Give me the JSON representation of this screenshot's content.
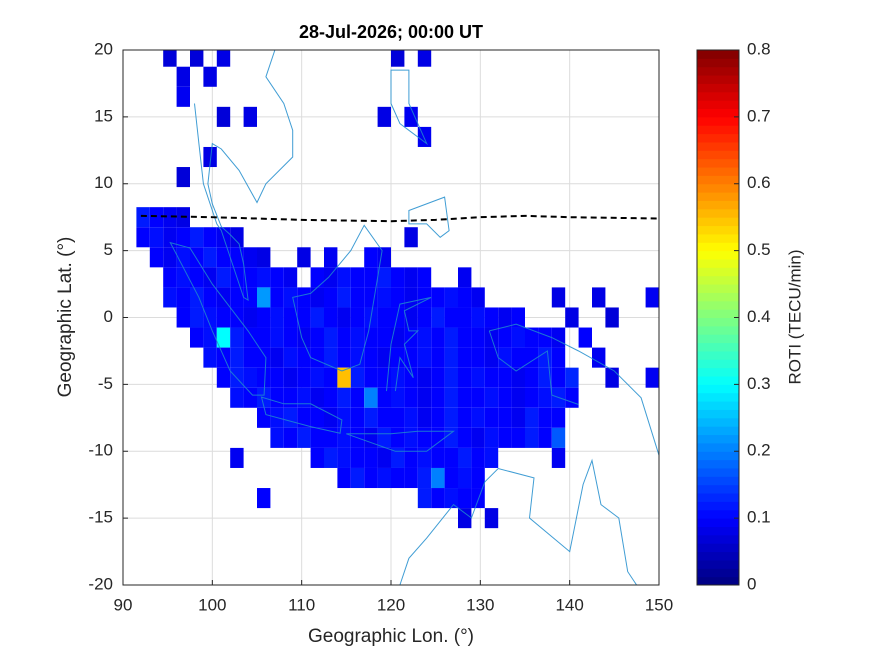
{
  "chart_data": {
    "type": "heatmap",
    "title": "28-Jul-2026; 00:00 UT",
    "x_label": "Geographic Lon. (°)",
    "y_label": "Geographic Lat. (°)",
    "colorbar_label": "ROTI (TECU/min)",
    "colormap": "jet",
    "grid": true,
    "xlim": [
      90,
      150
    ],
    "ylim": [
      -20,
      20
    ],
    "xticks": [
      90,
      100,
      110,
      120,
      130,
      140,
      150
    ],
    "yticks": [
      -20,
      -15,
      -10,
      -5,
      0,
      5,
      10,
      15,
      20
    ],
    "clim": [
      0,
      0.8
    ],
    "cticks": [
      0,
      0.1,
      0.2,
      0.3,
      0.4,
      0.5,
      0.6,
      0.7,
      0.8
    ],
    "x": [
      92.25,
      93.75,
      95.25,
      96.75,
      98.25,
      99.75,
      101.25,
      102.75,
      104.25,
      105.75,
      107.25,
      108.75,
      110.25,
      111.75,
      113.25,
      114.75,
      116.25,
      117.75,
      119.25,
      120.75,
      122.25,
      123.75,
      125.25,
      126.75,
      128.25,
      129.75,
      131.25,
      132.75,
      134.25,
      135.75,
      137.25,
      138.75,
      140.25,
      141.75,
      143.25,
      144.75,
      146.25,
      147.75,
      149.25
    ],
    "y": [
      19.5,
      18,
      16.5,
      15,
      13.5,
      12,
      10.5,
      7.5,
      6,
      4.5,
      3,
      1.5,
      0,
      -1.5,
      -3,
      -4.5,
      -6,
      -7.5,
      -9,
      -10.5,
      -12,
      -13.5,
      -15
    ],
    "values": [
      [
        null,
        null,
        0.07,
        null,
        0.07,
        null,
        0.08,
        null,
        null,
        null,
        null,
        null,
        null,
        null,
        null,
        null,
        null,
        null,
        null,
        0.07,
        null,
        0.08,
        null,
        null,
        null,
        null,
        null,
        null,
        null,
        null,
        null,
        null,
        null,
        null,
        null,
        null,
        null,
        null,
        null
      ],
      [
        null,
        null,
        null,
        0.08,
        null,
        0.08,
        null,
        null,
        null,
        null,
        null,
        null,
        null,
        null,
        null,
        null,
        null,
        null,
        null,
        null,
        null,
        null,
        null,
        null,
        null,
        null,
        null,
        null,
        null,
        null,
        null,
        null,
        null,
        null,
        null,
        null,
        null,
        null,
        null
      ],
      [
        null,
        null,
        null,
        0.09,
        null,
        null,
        null,
        null,
        null,
        null,
        null,
        null,
        null,
        null,
        null,
        null,
        null,
        null,
        null,
        null,
        null,
        null,
        null,
        null,
        null,
        null,
        null,
        null,
        null,
        null,
        null,
        null,
        null,
        null,
        null,
        null,
        null,
        null,
        null
      ],
      [
        null,
        null,
        null,
        null,
        null,
        null,
        0.07,
        null,
        0.08,
        null,
        null,
        null,
        null,
        null,
        null,
        null,
        null,
        null,
        0.08,
        null,
        0.09,
        null,
        null,
        null,
        null,
        null,
        null,
        null,
        null,
        null,
        null,
        null,
        null,
        null,
        null,
        null,
        null,
        null,
        null
      ],
      [
        null,
        null,
        null,
        null,
        null,
        null,
        null,
        null,
        null,
        null,
        null,
        null,
        null,
        null,
        null,
        null,
        null,
        null,
        null,
        null,
        null,
        0.09,
        null,
        null,
        null,
        null,
        null,
        null,
        null,
        null,
        null,
        null,
        null,
        null,
        null,
        null,
        null,
        null,
        null
      ],
      [
        null,
        null,
        null,
        null,
        null,
        0.08,
        null,
        null,
        null,
        null,
        null,
        null,
        null,
        null,
        null,
        null,
        null,
        null,
        null,
        null,
        null,
        null,
        null,
        null,
        null,
        null,
        null,
        null,
        null,
        null,
        null,
        null,
        null,
        null,
        null,
        null,
        null,
        null,
        null
      ],
      [
        null,
        null,
        null,
        0.07,
        null,
        null,
        null,
        null,
        null,
        null,
        null,
        null,
        null,
        null,
        null,
        null,
        null,
        null,
        null,
        null,
        null,
        null,
        null,
        null,
        null,
        null,
        null,
        null,
        null,
        null,
        null,
        null,
        null,
        null,
        null,
        null,
        null,
        null,
        null
      ],
      [
        0.12,
        0.1,
        0.09,
        0.08,
        null,
        null,
        null,
        null,
        null,
        null,
        null,
        null,
        null,
        null,
        null,
        null,
        null,
        null,
        null,
        null,
        null,
        null,
        null,
        null,
        null,
        null,
        null,
        null,
        null,
        null,
        null,
        null,
        null,
        null,
        null,
        null,
        null,
        null,
        null
      ],
      [
        0.1,
        0.11,
        0.09,
        0.1,
        0.12,
        0.1,
        0.09,
        0.08,
        null,
        null,
        null,
        null,
        null,
        null,
        null,
        null,
        null,
        null,
        null,
        null,
        0.08,
        null,
        null,
        null,
        null,
        null,
        null,
        null,
        null,
        null,
        null,
        null,
        null,
        null,
        null,
        null,
        null,
        null,
        null
      ],
      [
        null,
        0.1,
        0.09,
        0.11,
        0.1,
        0.12,
        0.1,
        0.1,
        0.09,
        0.08,
        null,
        null,
        0.08,
        null,
        0.09,
        null,
        null,
        0.1,
        0.09,
        null,
        null,
        null,
        null,
        null,
        null,
        null,
        null,
        null,
        null,
        null,
        null,
        null,
        null,
        null,
        null,
        null,
        null,
        null,
        null
      ],
      [
        null,
        null,
        0.1,
        0.11,
        0.1,
        0.09,
        0.12,
        0.1,
        0.1,
        0.11,
        0.1,
        0.09,
        null,
        0.1,
        0.09,
        0.11,
        0.1,
        0.1,
        0.12,
        0.1,
        0.09,
        0.1,
        null,
        null,
        0.09,
        null,
        null,
        null,
        null,
        null,
        null,
        null,
        null,
        null,
        null,
        null,
        null,
        null,
        null
      ],
      [
        null,
        null,
        0.11,
        0.1,
        0.12,
        0.1,
        0.09,
        0.1,
        0.1,
        0.22,
        0.1,
        0.11,
        0.1,
        0.09,
        0.1,
        0.12,
        0.1,
        0.1,
        0.11,
        0.1,
        0.09,
        0.1,
        0.1,
        0.11,
        0.1,
        0.09,
        null,
        null,
        null,
        null,
        null,
        0.08,
        null,
        null,
        0.08,
        null,
        null,
        null,
        0.09
      ],
      [
        null,
        null,
        null,
        0.1,
        0.12,
        0.11,
        0.1,
        0.1,
        0.09,
        0.1,
        0.11,
        0.1,
        0.1,
        0.12,
        0.1,
        0.09,
        0.1,
        0.11,
        0.1,
        0.1,
        0.09,
        0.1,
        0.12,
        0.1,
        0.1,
        0.11,
        0.1,
        0.09,
        0.1,
        null,
        null,
        null,
        0.08,
        null,
        null,
        0.07,
        null,
        null,
        null
      ],
      [
        null,
        null,
        null,
        null,
        0.1,
        0.11,
        0.3,
        0.12,
        0.1,
        0.1,
        0.11,
        0.1,
        0.09,
        0.1,
        0.12,
        0.1,
        0.11,
        0.1,
        0.1,
        0.09,
        0.1,
        0.11,
        0.1,
        0.12,
        0.1,
        0.1,
        0.09,
        0.1,
        0.11,
        0.1,
        0.1,
        0.09,
        null,
        0.1,
        null,
        null,
        null,
        null,
        null
      ],
      [
        null,
        null,
        null,
        null,
        null,
        0.11,
        0.1,
        0.12,
        0.1,
        0.1,
        0.09,
        0.11,
        0.1,
        0.1,
        0.12,
        0.1,
        0.11,
        0.1,
        0.09,
        0.1,
        0.1,
        0.11,
        0.1,
        0.12,
        0.1,
        0.1,
        0.09,
        0.11,
        0.1,
        0.1,
        0.12,
        0.1,
        null,
        null,
        0.09,
        null,
        null,
        null,
        null
      ],
      [
        null,
        null,
        null,
        null,
        null,
        null,
        0.1,
        0.12,
        0.11,
        0.1,
        0.1,
        0.09,
        0.1,
        0.11,
        0.1,
        0.55,
        0.12,
        0.1,
        0.1,
        0.11,
        0.1,
        0.09,
        0.1,
        0.12,
        0.1,
        0.11,
        0.1,
        0.1,
        0.09,
        0.1,
        0.12,
        0.1,
        0.13,
        null,
        null,
        0.08,
        null,
        null,
        0.09
      ],
      [
        null,
        null,
        null,
        null,
        null,
        null,
        null,
        0.11,
        0.1,
        0.12,
        0.1,
        0.1,
        0.11,
        0.09,
        0.1,
        0.12,
        0.1,
        0.2,
        0.1,
        0.11,
        0.1,
        0.09,
        0.1,
        0.12,
        0.1,
        0.1,
        0.11,
        0.1,
        0.09,
        0.1,
        0.11,
        0.12,
        0.1,
        null,
        null,
        null,
        null,
        null,
        null
      ],
      [
        null,
        null,
        null,
        null,
        null,
        null,
        null,
        null,
        null,
        0.1,
        0.11,
        0.12,
        0.1,
        0.1,
        0.09,
        0.11,
        0.1,
        0.12,
        0.1,
        0.1,
        0.11,
        0.09,
        0.1,
        0.12,
        0.1,
        0.11,
        0.1,
        0.1,
        0.09,
        0.12,
        0.1,
        0.1,
        null,
        null,
        null,
        null,
        null,
        null,
        null
      ],
      [
        null,
        null,
        null,
        null,
        null,
        null,
        null,
        null,
        null,
        null,
        0.11,
        0.1,
        0.12,
        0.1,
        0.1,
        0.11,
        0.1,
        0.09,
        0.12,
        0.1,
        0.11,
        0.1,
        0.1,
        0.12,
        0.1,
        0.09,
        0.11,
        0.1,
        0.1,
        0.12,
        0.1,
        0.17,
        null,
        null,
        null,
        null,
        null,
        null,
        null
      ],
      [
        null,
        null,
        null,
        null,
        null,
        null,
        null,
        0.09,
        null,
        null,
        null,
        null,
        null,
        0.1,
        0.12,
        0.11,
        0.1,
        0.1,
        0.09,
        0.12,
        0.1,
        0.11,
        0.1,
        0.1,
        0.12,
        0.1,
        0.11,
        null,
        null,
        null,
        null,
        0.09,
        null,
        null,
        null,
        null,
        null,
        null,
        null
      ],
      [
        null,
        null,
        null,
        null,
        null,
        null,
        null,
        null,
        null,
        null,
        null,
        null,
        null,
        null,
        null,
        0.1,
        0.12,
        0.1,
        0.11,
        0.1,
        0.1,
        0.12,
        0.2,
        0.1,
        0.11,
        0.1,
        null,
        null,
        null,
        null,
        null,
        null,
        null,
        null,
        null,
        null,
        null,
        null,
        null
      ],
      [
        null,
        null,
        null,
        null,
        null,
        null,
        null,
        null,
        null,
        0.1,
        null,
        null,
        null,
        null,
        null,
        null,
        null,
        null,
        null,
        null,
        null,
        0.12,
        0.1,
        0.11,
        0.1,
        0.1,
        null,
        null,
        null,
        null,
        null,
        null,
        null,
        null,
        null,
        null,
        null,
        null,
        null
      ],
      [
        null,
        null,
        null,
        null,
        null,
        null,
        null,
        null,
        null,
        null,
        null,
        null,
        null,
        null,
        null,
        null,
        null,
        null,
        null,
        null,
        null,
        null,
        null,
        null,
        0.08,
        null,
        0.08,
        null,
        null,
        null,
        null,
        null,
        null,
        null,
        null,
        null,
        null,
        null,
        null
      ]
    ],
    "equator": {
      "color": "#000000",
      "style": "dashed",
      "x": [
        92,
        100,
        110,
        120,
        125,
        130,
        135,
        140,
        150
      ],
      "y": [
        7.6,
        7.5,
        7.3,
        7.2,
        7.3,
        7.5,
        7.6,
        7.5,
        7.4
      ]
    }
  }
}
